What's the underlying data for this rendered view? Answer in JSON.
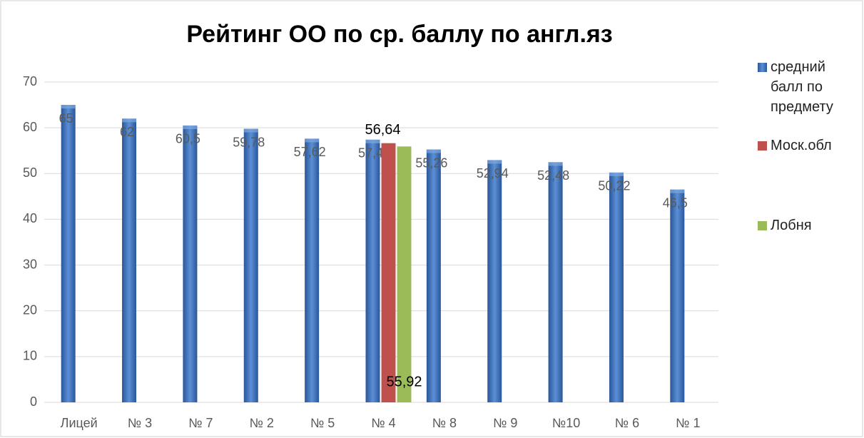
{
  "chart_data": {
    "type": "bar",
    "title": "Рейтинг ОО по ср. баллу по англ.яз",
    "categories": [
      "Лицей",
      "№ 3",
      "№ 7",
      "№ 2",
      "№ 5",
      "№ 4",
      "№ 8",
      "№ 9",
      "№10",
      "№ 6",
      "№ 1"
    ],
    "series": [
      {
        "name": "средний балл по предмету",
        "color": "#3f72b5",
        "values": [
          65,
          62,
          60.5,
          59.78,
          57.62,
          57.4,
          55.26,
          52.94,
          52.48,
          50.22,
          46.5
        ],
        "value_labels": [
          "65",
          "62",
          "60,5",
          "59,78",
          "57,62",
          "57,4",
          "55,26",
          "52,94",
          "52,48",
          "50,22",
          "46,5"
        ]
      },
      {
        "name": "Моск.обл",
        "color": "#c0504d",
        "values": [
          null,
          null,
          null,
          null,
          null,
          56.64,
          null,
          null,
          null,
          null,
          null
        ],
        "value_labels": [
          null,
          null,
          null,
          null,
          null,
          "56,64",
          null,
          null,
          null,
          null,
          null
        ]
      },
      {
        "name": "Лобня",
        "color": "#9bbb59",
        "values": [
          null,
          null,
          null,
          null,
          null,
          55.92,
          null,
          null,
          null,
          null,
          null
        ],
        "value_labels": [
          null,
          null,
          null,
          null,
          null,
          "55,92",
          null,
          null,
          null,
          null,
          null
        ]
      }
    ],
    "ylim": [
      0,
      70
    ],
    "yticks": [
      0,
      10,
      20,
      30,
      40,
      50,
      60,
      70
    ],
    "grid": true,
    "legend": "right"
  }
}
